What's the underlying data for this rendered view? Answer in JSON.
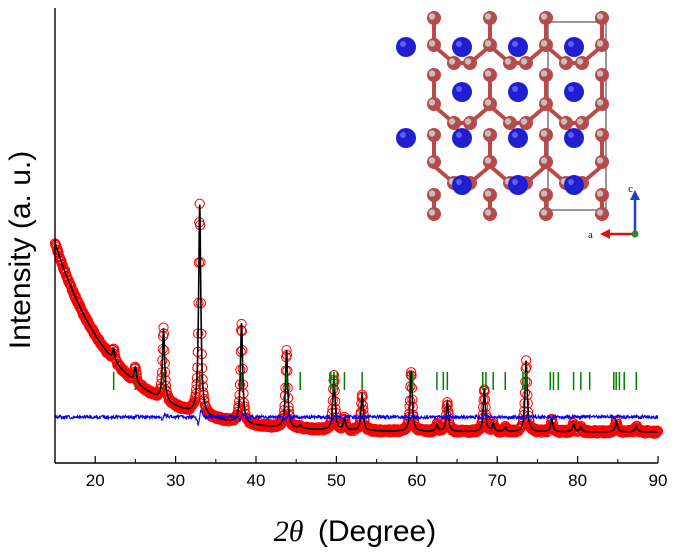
{
  "chart_data": {
    "type": "line",
    "title": "",
    "xlabel_symbol": "2θ",
    "xlabel_unit": "(Degree)",
    "ylabel": "Intensity (a. u.)",
    "xlim": [
      15,
      90
    ],
    "xticks": [
      20,
      30,
      40,
      50,
      60,
      70,
      80,
      90
    ],
    "yticks_shown": false,
    "series": [
      {
        "name": "Observed",
        "style": "open-circles",
        "color": "#ff0000"
      },
      {
        "name": "Calculated",
        "style": "line",
        "color": "#000000"
      },
      {
        "name": "Bragg positions",
        "style": "vertical-ticks",
        "color": "#008000"
      },
      {
        "name": "Difference",
        "style": "line",
        "color": "#0000ff"
      }
    ],
    "background": {
      "start": 220,
      "end": 31,
      "decay": 7.5
    },
    "peaks": [
      {
        "x": 22.3,
        "h": 12
      },
      {
        "x": 25.0,
        "h": 15
      },
      {
        "x": 28.5,
        "h": 72
      },
      {
        "x": 33.0,
        "h": 210
      },
      {
        "x": 38.2,
        "h": 100
      },
      {
        "x": 43.8,
        "h": 78
      },
      {
        "x": 45.5,
        "h": 3
      },
      {
        "x": 49.7,
        "h": 55
      },
      {
        "x": 51.0,
        "h": 12
      },
      {
        "x": 53.2,
        "h": 37
      },
      {
        "x": 59.3,
        "h": 60
      },
      {
        "x": 62.5,
        "h": 7
      },
      {
        "x": 63.8,
        "h": 30
      },
      {
        "x": 68.4,
        "h": 43
      },
      {
        "x": 69.5,
        "h": 8
      },
      {
        "x": 71.0,
        "h": 4
      },
      {
        "x": 73.6,
        "h": 71
      },
      {
        "x": 76.8,
        "h": 13
      },
      {
        "x": 79.5,
        "h": 8
      },
      {
        "x": 80.4,
        "h": 5
      },
      {
        "x": 84.8,
        "h": 11
      },
      {
        "x": 87.3,
        "h": 6
      }
    ],
    "bragg_positions": [
      22.3,
      25.0,
      28.5,
      33.0,
      38.2,
      43.8,
      45.5,
      49.3,
      49.7,
      50.1,
      51.0,
      53.2,
      59.1,
      59.5,
      62.5,
      63.3,
      63.8,
      68.2,
      68.6,
      69.5,
      71.0,
      73.2,
      73.6,
      76.6,
      77.0,
      77.6,
      79.5,
      80.4,
      81.5,
      84.5,
      84.8,
      85.2,
      85.8,
      87.3
    ],
    "inset": {
      "description": "crystal structure",
      "axis_labels": {
        "vertical": "c",
        "horizontal": "a"
      },
      "colors": {
        "framework": "#b84a4a",
        "cation": "#1f1fd0",
        "node_light": "#c0c0c0",
        "axis_c": "#1f3fd0",
        "axis_a": "#e01010",
        "axis_b": "#2a8a2a"
      }
    }
  }
}
